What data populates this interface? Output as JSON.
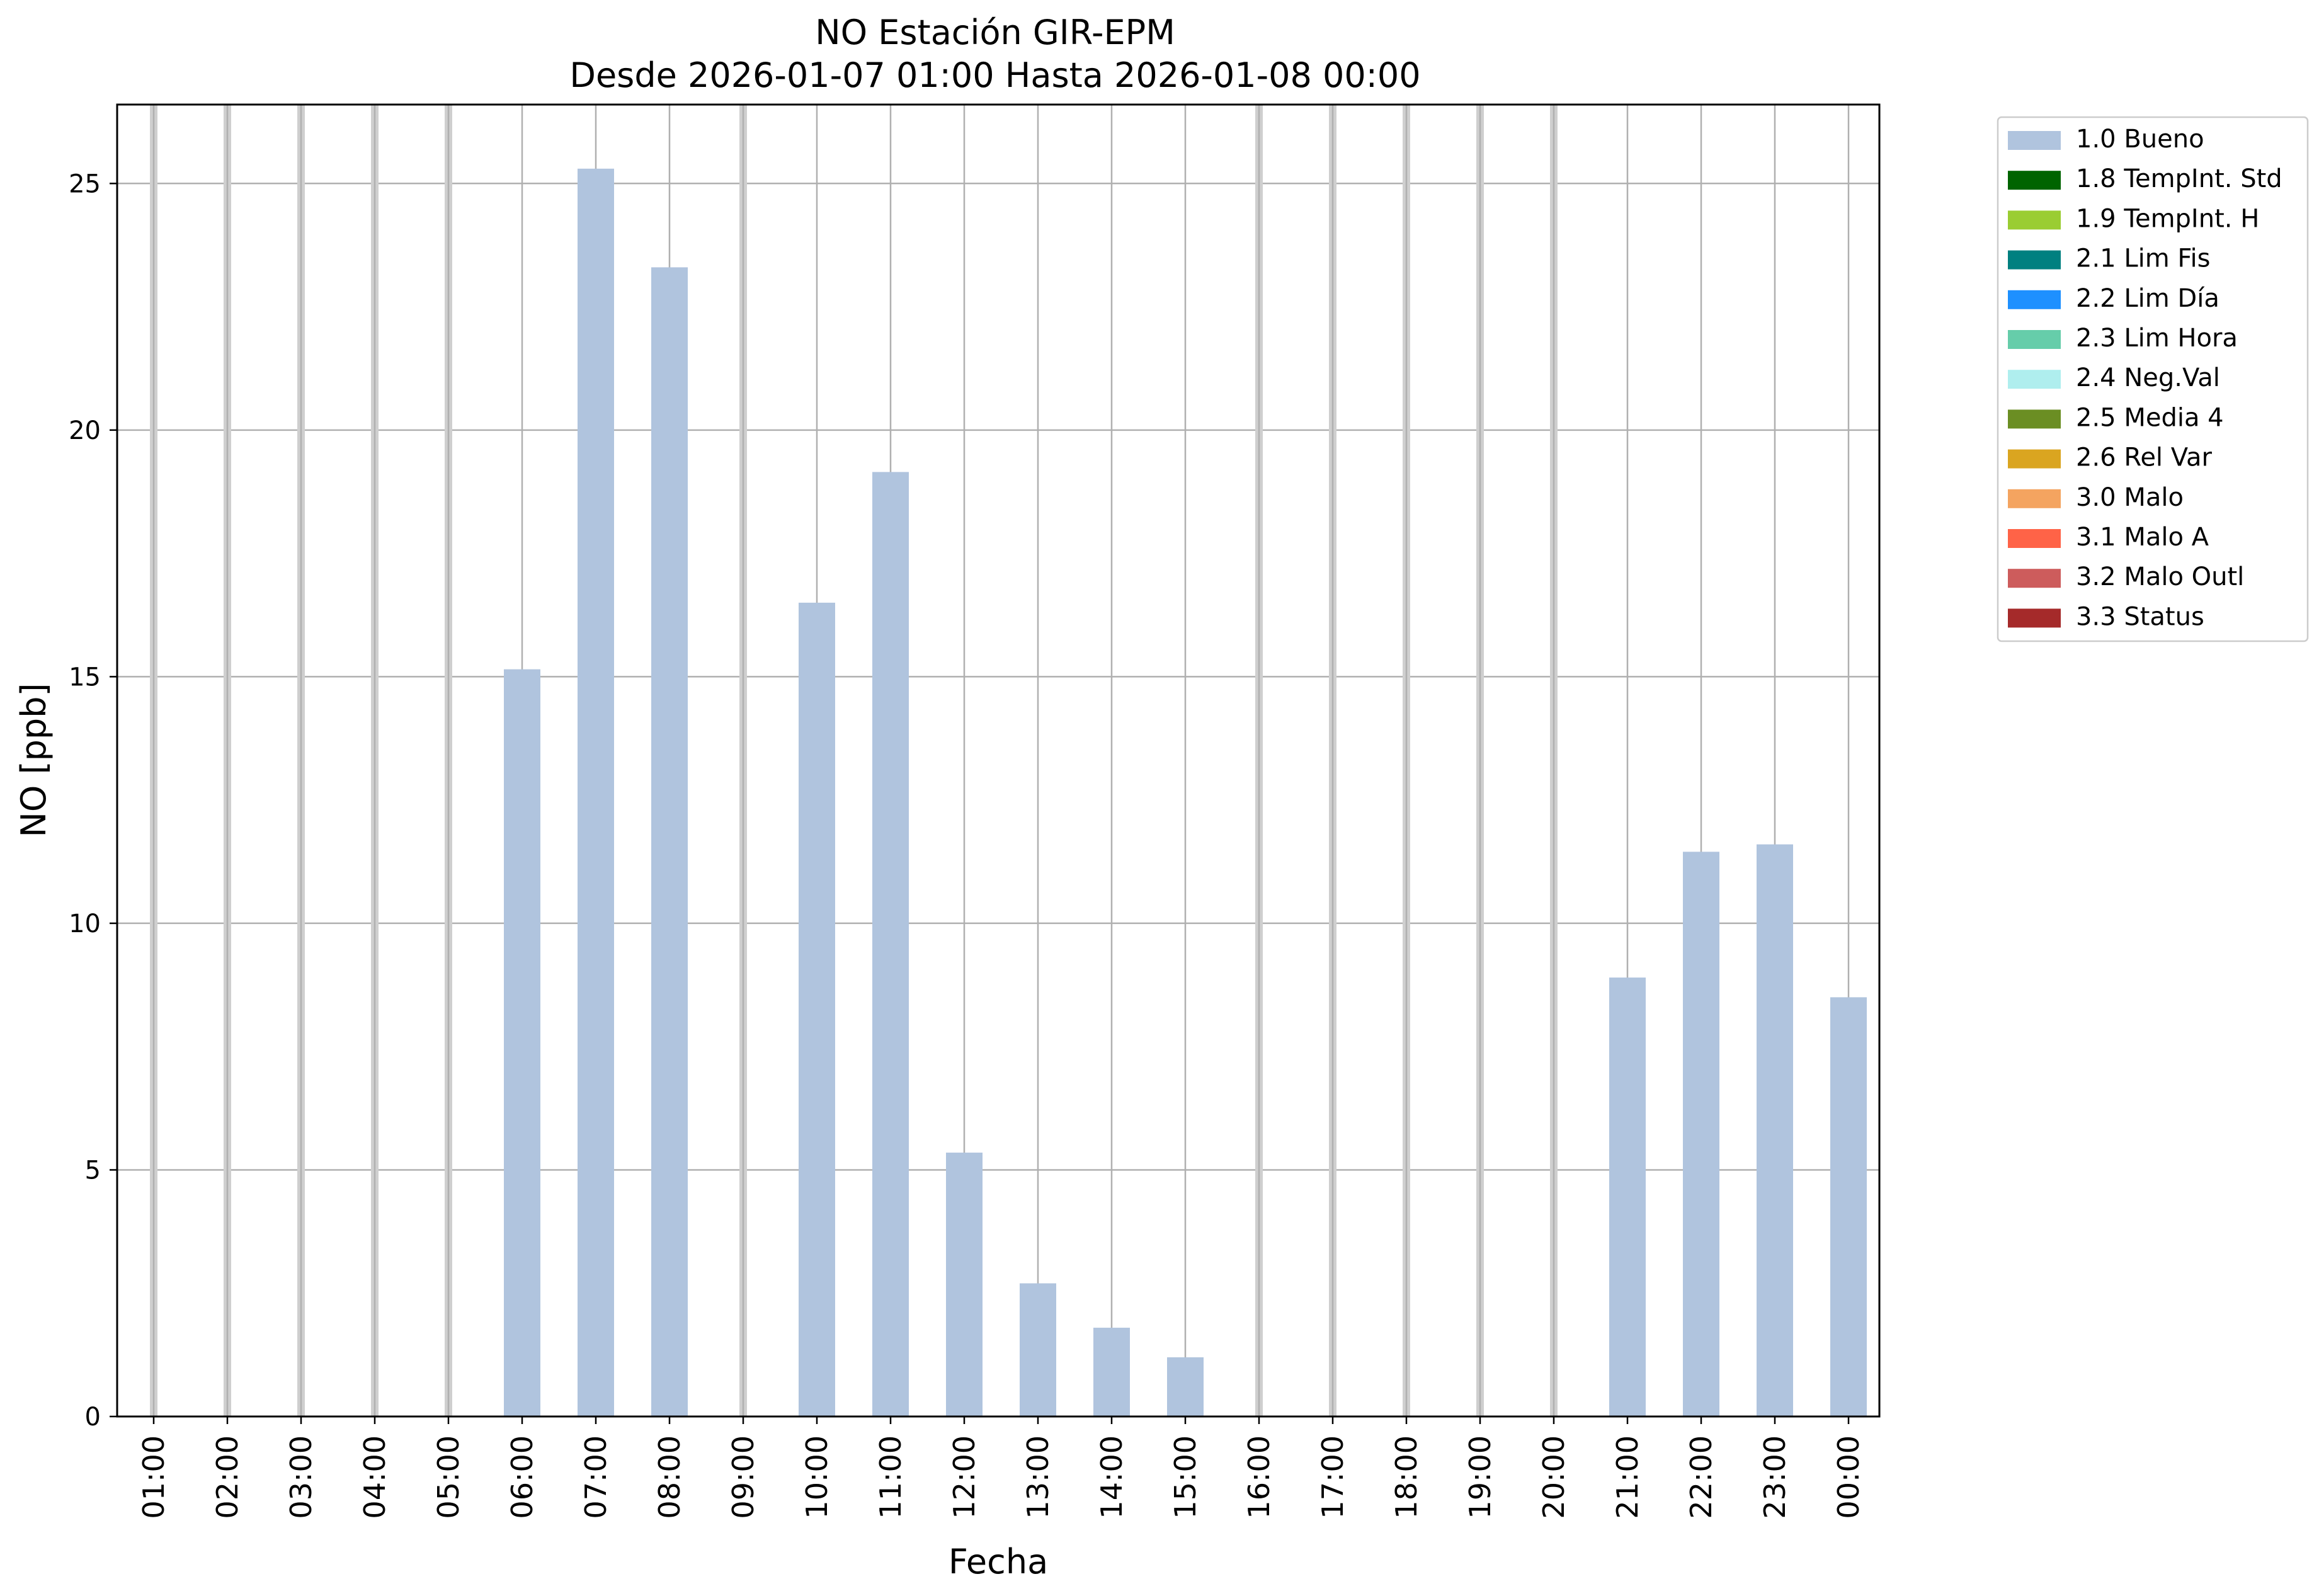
{
  "chart_data": {
    "type": "bar",
    "title": "NO Estación GIR-EPM",
    "subtitle": "Desde 2026-01-07 01:00 Hasta 2026-01-08 00:00",
    "xlabel": "Fecha",
    "ylabel": "NO [ppb]",
    "ylim": [
      0,
      26.6
    ],
    "yticks": [
      0,
      5,
      10,
      15,
      20,
      25
    ],
    "grid": true,
    "legend_position": "outside top-right",
    "categories": [
      "01:00",
      "02:00",
      "03:00",
      "04:00",
      "05:00",
      "06:00",
      "07:00",
      "08:00",
      "09:00",
      "10:00",
      "11:00",
      "12:00",
      "13:00",
      "14:00",
      "15:00",
      "16:00",
      "17:00",
      "18:00",
      "19:00",
      "20:00",
      "21:00",
      "22:00",
      "23:00",
      "00:00"
    ],
    "series": [
      {
        "name": "1.0 Bueno",
        "color": "#b0c4de",
        "values": [
          null,
          null,
          null,
          null,
          null,
          15.15,
          25.3,
          23.3,
          null,
          16.5,
          19.15,
          5.35,
          2.7,
          1.8,
          1.2,
          null,
          null,
          null,
          null,
          null,
          8.9,
          11.45,
          11.6,
          8.5
        ]
      }
    ],
    "legend": [
      {
        "label": "1.0 Bueno",
        "color": "#b0c4de"
      },
      {
        "label": "1.8 TempInt. Std",
        "color": "#006400"
      },
      {
        "label": "1.9 TempInt. H",
        "color": "#9acd32"
      },
      {
        "label": "2.1 Lim Fis",
        "color": "#008080"
      },
      {
        "label": "2.2 Lim Día",
        "color": "#1e90ff"
      },
      {
        "label": "2.3 Lim Hora",
        "color": "#66cdaa"
      },
      {
        "label": "2.4 Neg.Val",
        "color": "#afeeee"
      },
      {
        "label": "2.5 Media 4",
        "color": "#6b8e23"
      },
      {
        "label": "2.6 Rel Var",
        "color": "#daa520"
      },
      {
        "label": "3.0 Malo",
        "color": "#f4a460"
      },
      {
        "label": "3.1 Malo A",
        "color": "#ff6347"
      },
      {
        "label": "3.2 Malo Outl",
        "color": "#cd5c5c"
      },
      {
        "label": "3.3 Status",
        "color": "#a52a2a"
      }
    ]
  }
}
